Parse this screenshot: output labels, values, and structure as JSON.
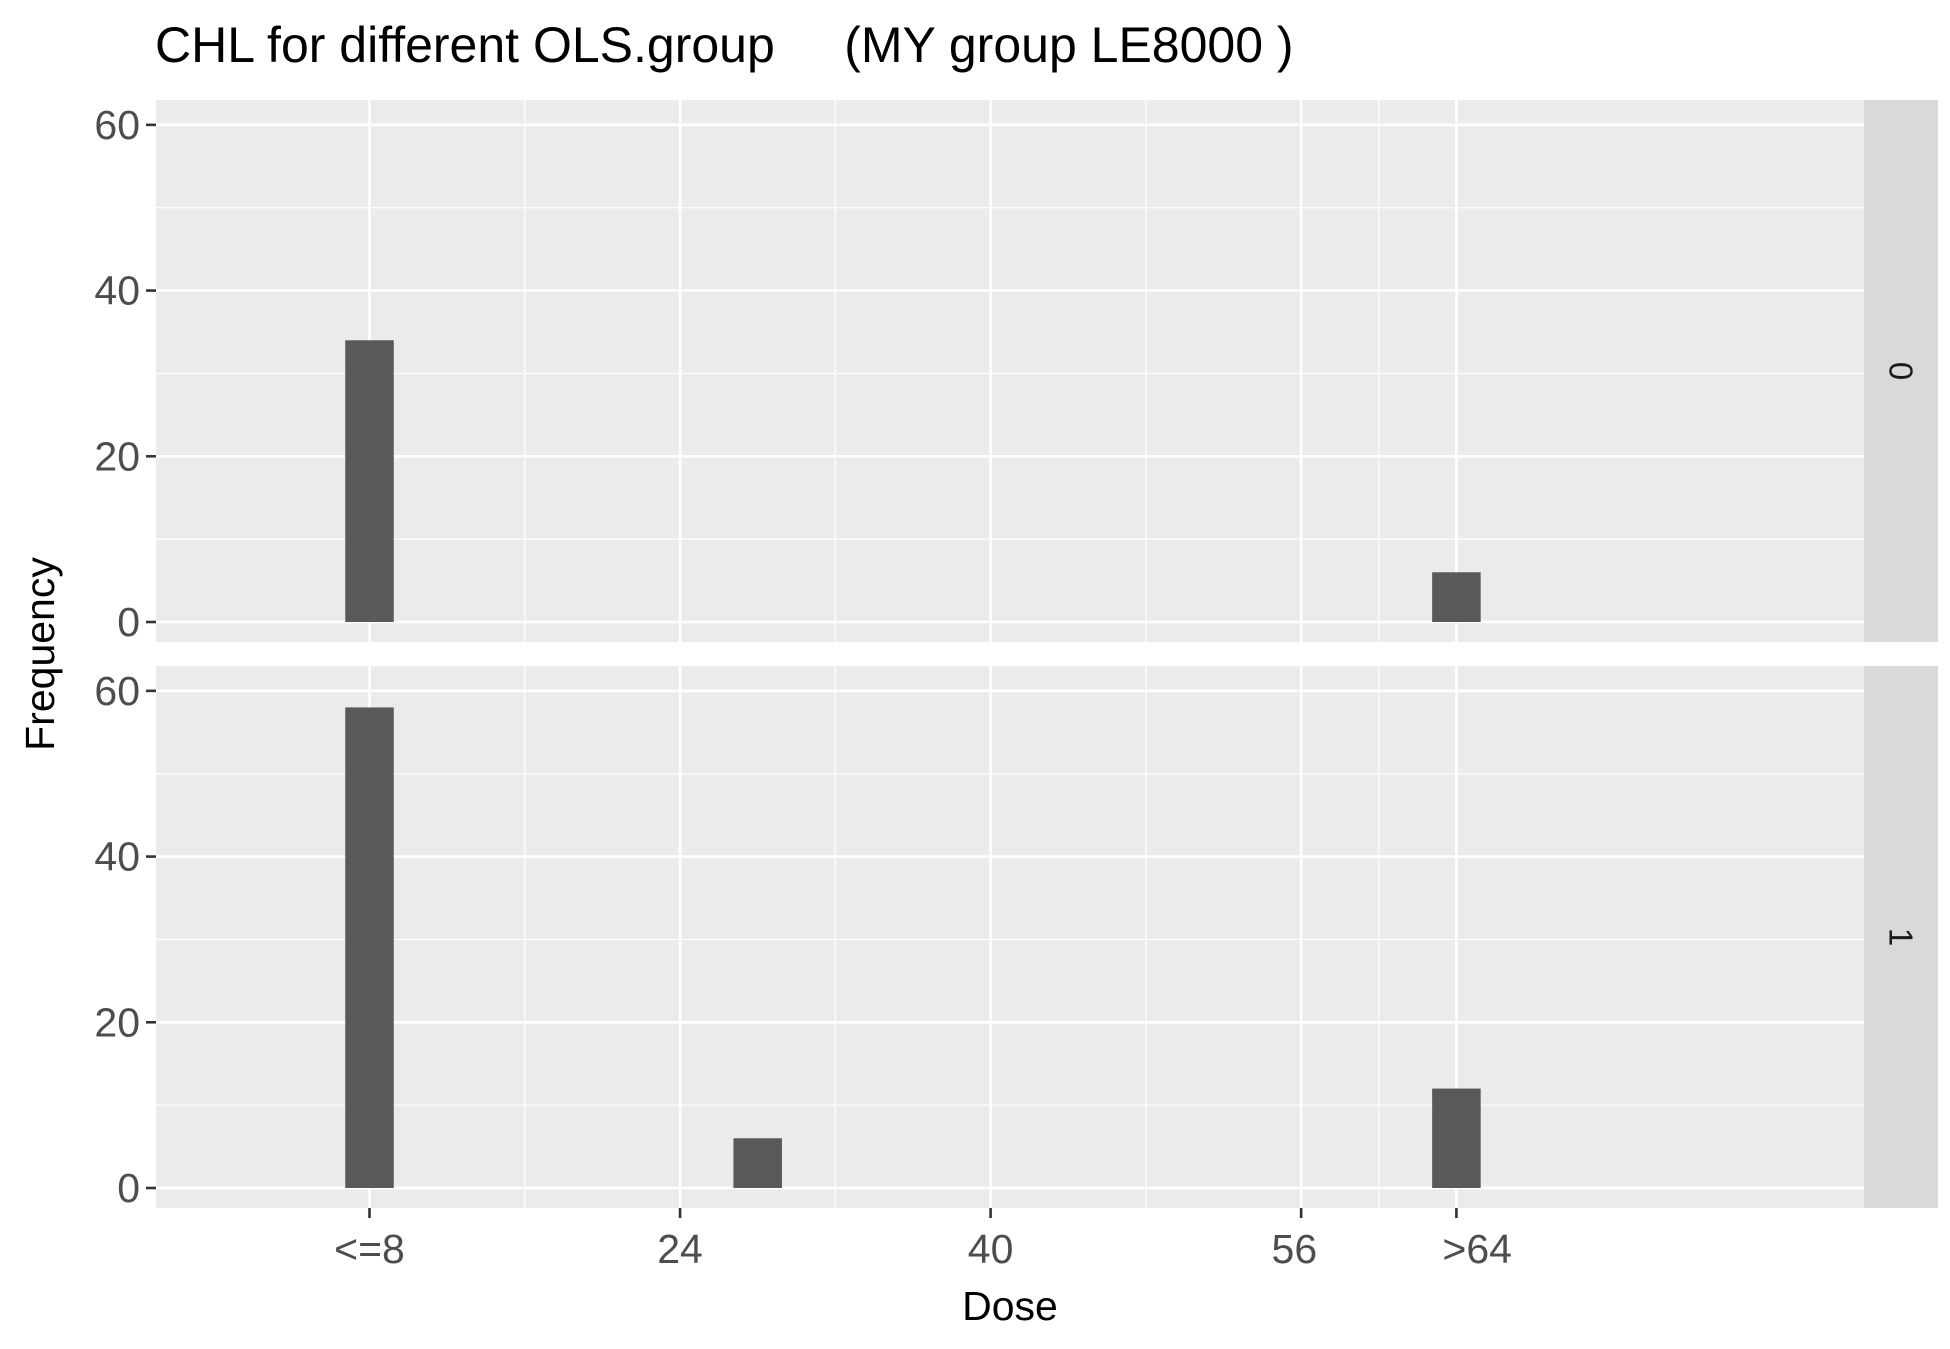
{
  "chart_data": {
    "type": "bar",
    "title": "CHL for different OLS.group     (MY group LE8000 )",
    "xlabel": "Dose",
    "ylabel": "Frequency",
    "x_ticks": [
      {
        "value": 8,
        "label": "<=8"
      },
      {
        "value": 24,
        "label": "24"
      },
      {
        "value": 40,
        "label": "40"
      },
      {
        "value": 56,
        "label": "56"
      },
      {
        "value": 64,
        "label": ">64"
      }
    ],
    "xlim": [
      -3,
      85
    ],
    "ylim": [
      0,
      63
    ],
    "y_ticks": [
      0,
      20,
      40,
      60
    ],
    "grid": true,
    "bar_color": "#595959",
    "panels": [
      {
        "strip": "0",
        "bars": [
          {
            "x": 8,
            "y": 34
          },
          {
            "x": 64,
            "y": 6
          }
        ]
      },
      {
        "strip": "1",
        "bars": [
          {
            "x": 8,
            "y": 58
          },
          {
            "x": 28,
            "y": 6
          },
          {
            "x": 64,
            "y": 12
          }
        ]
      }
    ]
  }
}
